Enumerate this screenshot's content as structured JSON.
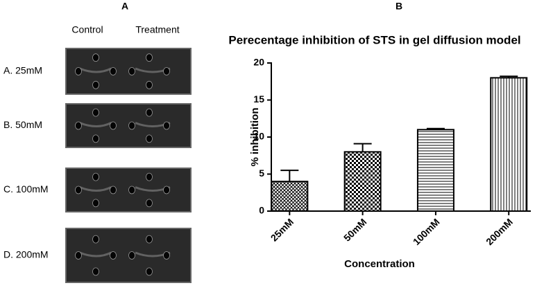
{
  "panel_labels": [
    "A",
    "B"
  ],
  "gel": {
    "columns": [
      "Control",
      "Treatment"
    ],
    "rows": [
      "A. 25mM",
      "B. 50mM",
      "C. 100mM",
      "D. 200mM"
    ]
  },
  "chart_data": {
    "type": "bar",
    "title": "Perecentage inhibition of STS in gel diffusion model",
    "x_label": "Concentration",
    "y_label": "% inhibition",
    "categories": [
      "25mM",
      "50mM",
      "100mM",
      "200mM"
    ],
    "values": [
      4,
      8,
      11,
      18
    ],
    "errors": [
      1.5,
      1.1,
      0.15,
      0.2
    ],
    "patterns": [
      "crosshatch",
      "checker",
      "horizontal",
      "vertical"
    ],
    "color": "#000000",
    "ylim": [
      0,
      20
    ],
    "yticks": [
      0,
      5,
      10,
      15,
      20
    ]
  }
}
